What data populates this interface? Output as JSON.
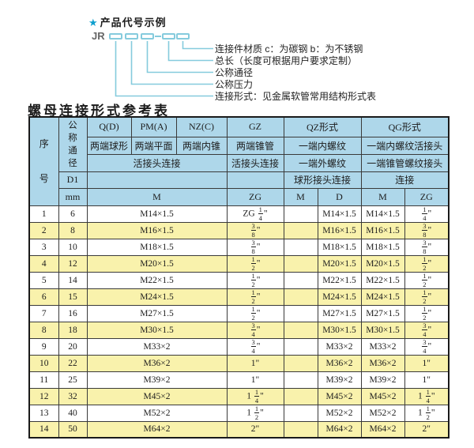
{
  "diagram": {
    "star": "★",
    "title": "产品代号示例",
    "prefix": "JR",
    "labels": [
      "连接件材质  c：为碳钢  b：为不锈钢",
      "总长（长度可根据用户要求定制）",
      "公称通径",
      "公称压力",
      "连接形式：见金属软管常用结构形式表"
    ]
  },
  "table": {
    "title": "螺母连接形式参考表",
    "header": {
      "seq": "序号",
      "dn": "公称通径",
      "d1": "D1",
      "mm": "mm",
      "col_q": "Q(D)",
      "col_q_sub": "两端球形",
      "col_pm": "PM(A)",
      "col_pm_sub": "两端平面",
      "col_nz": "NZ(C)",
      "col_nz_sub": "两端内锥",
      "col_gz": "GZ",
      "col_gz_sub": "两端锥管",
      "left_conn": "活接头连接",
      "gz_conn": "活接头连接",
      "col_qz": "QZ形式",
      "qz_sub1": "一端内螺纹",
      "qz_sub2": "一端外螺纹",
      "qz_conn": "球形接头连接",
      "col_qg": "QG形式",
      "qg_sub1": "一端内螺纹活接头",
      "qg_sub2": "一端锥管螺纹接头",
      "qg_conn": "连接",
      "m_label": "M",
      "gz_zg": "ZG",
      "qz_m": "M",
      "qz_d": "D",
      "qg_m": "M",
      "qg_zg": "ZG"
    },
    "rows": [
      {
        "seq": "1",
        "dn": "6",
        "m": "M14×1.5",
        "gz": "ZG 1/4\"",
        "qz_m": "",
        "qz_d": "M14×1.5",
        "qg_m": "M14×1.5",
        "qg_zg": "1/4\""
      },
      {
        "seq": "2",
        "dn": "8",
        "m": "M16×1.5",
        "gz": "3/8\"",
        "qz_m": "",
        "qz_d": "M16×1.5",
        "qg_m": "M16×1.5",
        "qg_zg": "3/8\""
      },
      {
        "seq": "3",
        "dn": "10",
        "m": "M18×1.5",
        "gz": "3/8\"",
        "qz_m": "",
        "qz_d": "M18×1.5",
        "qg_m": "M18×1.5",
        "qg_zg": "3/8\""
      },
      {
        "seq": "4",
        "dn": "12",
        "m": "M20×1.5",
        "gz": "1/2\"",
        "qz_m": "",
        "qz_d": "M20×1.5",
        "qg_m": "M20×1.5",
        "qg_zg": "1/2\""
      },
      {
        "seq": "5",
        "dn": "14",
        "m": "M22×1.5",
        "gz": "1/2\"",
        "qz_m": "",
        "qz_d": "M22×1.5",
        "qg_m": "M22×1.5",
        "qg_zg": "1/2\""
      },
      {
        "seq": "6",
        "dn": "15",
        "m": "M24×1.5",
        "gz": "1/2\"",
        "qz_m": "",
        "qz_d": "M24×1.5",
        "qg_m": "M24×1.5",
        "qg_zg": "1/2\""
      },
      {
        "seq": "7",
        "dn": "16",
        "m": "M27×1.5",
        "gz": "1/2\"",
        "qz_m": "",
        "qz_d": "M27×1.5",
        "qg_m": "M27×1.5",
        "qg_zg": "1/2\""
      },
      {
        "seq": "8",
        "dn": "18",
        "m": "M30×1.5",
        "gz": "3/4\"",
        "qz_m": "",
        "qz_d": "M30×1.5",
        "qg_m": "M30×1.5",
        "qg_zg": "3/4\""
      },
      {
        "seq": "9",
        "dn": "20",
        "m": "M33×2",
        "gz": "3/4\"",
        "qz_m": "",
        "qz_d": "M33×2",
        "qg_m": "M33×2",
        "qg_zg": "3/4\""
      },
      {
        "seq": "10",
        "dn": "22",
        "m": "M36×2",
        "gz": "1\"",
        "qz_m": "",
        "qz_d": "M36×2",
        "qg_m": "M36×2",
        "qg_zg": "1\""
      },
      {
        "seq": "11",
        "dn": "25",
        "m": "M39×2",
        "gz": "1\"",
        "qz_m": "",
        "qz_d": "M39×2",
        "qg_m": "M39×2",
        "qg_zg": "1\""
      },
      {
        "seq": "12",
        "dn": "32",
        "m": "M45×2",
        "gz": "1 1/4\"",
        "qz_m": "",
        "qz_d": "M45×2",
        "qg_m": "M45×2",
        "qg_zg": "1 1/4\""
      },
      {
        "seq": "13",
        "dn": "40",
        "m": "M52×2",
        "gz": "1 1/2\"",
        "qz_m": "",
        "qz_d": "M52×2",
        "qg_m": "M52×2",
        "qg_zg": "1 1/2\""
      },
      {
        "seq": "14",
        "dn": "50",
        "m": "M64×2",
        "gz": "2\"",
        "qz_m": "",
        "qz_d": "M64×2",
        "qg_m": "M64×2",
        "qg_zg": "2\""
      }
    ]
  },
  "colors": {
    "header_blue": "#aed7ea",
    "row_yellow": "#f9f2ac",
    "row_white": "#ffffff",
    "diagram_line": "#85cbdd",
    "star_blue": "#0e9fce",
    "border": "#3a3a3a"
  }
}
